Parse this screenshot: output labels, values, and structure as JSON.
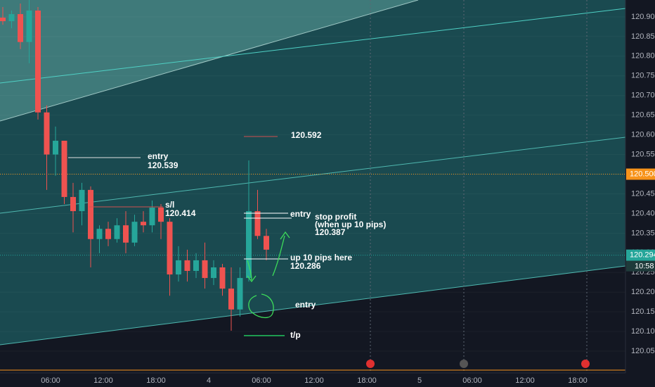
{
  "chart_data": {
    "type": "candlestick",
    "open": [
      120.898,
      120.889,
      120.907,
      120.836,
      120.916,
      120.657,
      120.55,
      120.585,
      120.442,
      120.406,
      120.46,
      120.335,
      120.361,
      120.335,
      120.37,
      120.326,
      120.379,
      120.37,
      120.415,
      120.379,
      120.245,
      120.281,
      120.254,
      120.281,
      120.236,
      120.263,
      120.209,
      120.156,
      120.236,
      120.406,
      120.343
    ],
    "high": [
      120.925,
      120.916,
      120.934,
      120.943,
      120.925,
      120.675,
      120.621,
      120.585,
      120.478,
      120.478,
      120.469,
      120.37,
      120.379,
      120.388,
      120.406,
      120.397,
      120.406,
      120.433,
      120.424,
      120.388,
      120.317,
      120.308,
      120.299,
      120.326,
      120.281,
      120.272,
      120.263,
      120.263,
      120.535,
      120.46,
      120.361
    ],
    "low": [
      120.88,
      120.871,
      120.818,
      120.782,
      120.639,
      120.46,
      120.496,
      120.424,
      120.352,
      120.37,
      120.263,
      120.299,
      120.317,
      120.326,
      120.299,
      120.317,
      120.352,
      120.352,
      120.335,
      120.191,
      120.227,
      120.227,
      120.236,
      120.209,
      120.218,
      120.191,
      120.102,
      120.138,
      120.227,
      120.335,
      120.281
    ],
    "close": [
      120.889,
      120.907,
      120.836,
      120.916,
      120.657,
      120.55,
      120.585,
      120.442,
      120.406,
      120.46,
      120.335,
      120.361,
      120.335,
      120.37,
      120.326,
      120.379,
      120.37,
      120.415,
      120.379,
      120.245,
      120.281,
      120.254,
      120.281,
      120.236,
      120.263,
      120.209,
      120.156,
      120.236,
      120.406,
      120.343,
      120.308
    ],
    "up_color": "#26a69a",
    "down_color": "#ef5350",
    "ylim": [
      120.0,
      120.95
    ],
    "yticks": [
      {
        "value": 120.05,
        "label": "120.050"
      },
      {
        "value": 120.1,
        "label": "120.100"
      },
      {
        "value": 120.15,
        "label": "120.150"
      },
      {
        "value": 120.2,
        "label": "120.200"
      },
      {
        "value": 120.25,
        "label": "120.250"
      },
      {
        "value": 120.3,
        "label": "120.300"
      },
      {
        "value": 120.35,
        "label": "120.350"
      },
      {
        "value": 120.4,
        "label": "120.400"
      },
      {
        "value": 120.45,
        "label": "120.450"
      },
      {
        "value": 120.5,
        "label": "120.500"
      },
      {
        "value": 120.55,
        "label": "120.550"
      },
      {
        "value": 120.6,
        "label": "120.600"
      },
      {
        "value": 120.65,
        "label": "120.650"
      },
      {
        "value": 120.7,
        "label": "120.700"
      },
      {
        "value": 120.75,
        "label": "120.750"
      },
      {
        "value": 120.8,
        "label": "120.800"
      },
      {
        "value": 120.85,
        "label": "120.850"
      },
      {
        "value": 120.9,
        "label": "120.900"
      }
    ],
    "x_axis_labels": [
      "06:00",
      "12:00",
      "18:00",
      "4",
      "06:00",
      "12:00",
      "18:00",
      "5",
      "06:00",
      "12:00",
      "18:00"
    ],
    "price_labels": [
      {
        "value": 120.5,
        "label": "120.500",
        "color": "#f7931a"
      },
      {
        "value": 120.294,
        "label": "120.294",
        "color": "#26a69a"
      }
    ],
    "countdown": "10:58"
  },
  "annotations": {
    "entry_1": [
      "entry",
      "120.539"
    ],
    "stop_loss": [
      "s/l",
      "120.414"
    ],
    "high_level": "120.592",
    "entry_2": "entry",
    "stop_profit": [
      "stop profit",
      "(when up 10 pips)",
      "120.387"
    ],
    "up_10": [
      "up 10 pips here",
      "120.286"
    ],
    "entry_3": "entry",
    "take_profit": "t/p"
  }
}
